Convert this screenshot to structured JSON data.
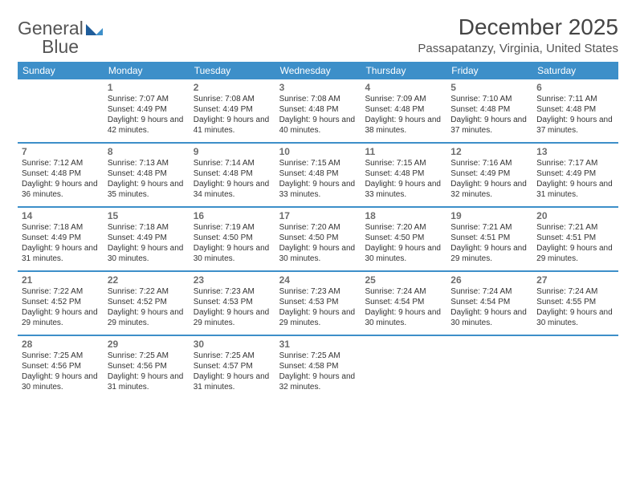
{
  "brand": {
    "part1": "General",
    "part2": "Blue"
  },
  "title": "December 2025",
  "location": "Passapatanzy, Virginia, United States",
  "colors": {
    "header_bg": "#3d8fc9",
    "border": "#3d8fc9",
    "text": "#333333"
  },
  "day_headers": [
    "Sunday",
    "Monday",
    "Tuesday",
    "Wednesday",
    "Thursday",
    "Friday",
    "Saturday"
  ],
  "weeks": [
    [
      {
        "day": "",
        "sunrise": "",
        "sunset": "",
        "daylight": ""
      },
      {
        "day": "1",
        "sunrise": "Sunrise: 7:07 AM",
        "sunset": "Sunset: 4:49 PM",
        "daylight": "Daylight: 9 hours and 42 minutes."
      },
      {
        "day": "2",
        "sunrise": "Sunrise: 7:08 AM",
        "sunset": "Sunset: 4:49 PM",
        "daylight": "Daylight: 9 hours and 41 minutes."
      },
      {
        "day": "3",
        "sunrise": "Sunrise: 7:08 AM",
        "sunset": "Sunset: 4:48 PM",
        "daylight": "Daylight: 9 hours and 40 minutes."
      },
      {
        "day": "4",
        "sunrise": "Sunrise: 7:09 AM",
        "sunset": "Sunset: 4:48 PM",
        "daylight": "Daylight: 9 hours and 38 minutes."
      },
      {
        "day": "5",
        "sunrise": "Sunrise: 7:10 AM",
        "sunset": "Sunset: 4:48 PM",
        "daylight": "Daylight: 9 hours and 37 minutes."
      },
      {
        "day": "6",
        "sunrise": "Sunrise: 7:11 AM",
        "sunset": "Sunset: 4:48 PM",
        "daylight": "Daylight: 9 hours and 37 minutes."
      }
    ],
    [
      {
        "day": "7",
        "sunrise": "Sunrise: 7:12 AM",
        "sunset": "Sunset: 4:48 PM",
        "daylight": "Daylight: 9 hours and 36 minutes."
      },
      {
        "day": "8",
        "sunrise": "Sunrise: 7:13 AM",
        "sunset": "Sunset: 4:48 PM",
        "daylight": "Daylight: 9 hours and 35 minutes."
      },
      {
        "day": "9",
        "sunrise": "Sunrise: 7:14 AM",
        "sunset": "Sunset: 4:48 PM",
        "daylight": "Daylight: 9 hours and 34 minutes."
      },
      {
        "day": "10",
        "sunrise": "Sunrise: 7:15 AM",
        "sunset": "Sunset: 4:48 PM",
        "daylight": "Daylight: 9 hours and 33 minutes."
      },
      {
        "day": "11",
        "sunrise": "Sunrise: 7:15 AM",
        "sunset": "Sunset: 4:48 PM",
        "daylight": "Daylight: 9 hours and 33 minutes."
      },
      {
        "day": "12",
        "sunrise": "Sunrise: 7:16 AM",
        "sunset": "Sunset: 4:49 PM",
        "daylight": "Daylight: 9 hours and 32 minutes."
      },
      {
        "day": "13",
        "sunrise": "Sunrise: 7:17 AM",
        "sunset": "Sunset: 4:49 PM",
        "daylight": "Daylight: 9 hours and 31 minutes."
      }
    ],
    [
      {
        "day": "14",
        "sunrise": "Sunrise: 7:18 AM",
        "sunset": "Sunset: 4:49 PM",
        "daylight": "Daylight: 9 hours and 31 minutes."
      },
      {
        "day": "15",
        "sunrise": "Sunrise: 7:18 AM",
        "sunset": "Sunset: 4:49 PM",
        "daylight": "Daylight: 9 hours and 30 minutes."
      },
      {
        "day": "16",
        "sunrise": "Sunrise: 7:19 AM",
        "sunset": "Sunset: 4:50 PM",
        "daylight": "Daylight: 9 hours and 30 minutes."
      },
      {
        "day": "17",
        "sunrise": "Sunrise: 7:20 AM",
        "sunset": "Sunset: 4:50 PM",
        "daylight": "Daylight: 9 hours and 30 minutes."
      },
      {
        "day": "18",
        "sunrise": "Sunrise: 7:20 AM",
        "sunset": "Sunset: 4:50 PM",
        "daylight": "Daylight: 9 hours and 30 minutes."
      },
      {
        "day": "19",
        "sunrise": "Sunrise: 7:21 AM",
        "sunset": "Sunset: 4:51 PM",
        "daylight": "Daylight: 9 hours and 29 minutes."
      },
      {
        "day": "20",
        "sunrise": "Sunrise: 7:21 AM",
        "sunset": "Sunset: 4:51 PM",
        "daylight": "Daylight: 9 hours and 29 minutes."
      }
    ],
    [
      {
        "day": "21",
        "sunrise": "Sunrise: 7:22 AM",
        "sunset": "Sunset: 4:52 PM",
        "daylight": "Daylight: 9 hours and 29 minutes."
      },
      {
        "day": "22",
        "sunrise": "Sunrise: 7:22 AM",
        "sunset": "Sunset: 4:52 PM",
        "daylight": "Daylight: 9 hours and 29 minutes."
      },
      {
        "day": "23",
        "sunrise": "Sunrise: 7:23 AM",
        "sunset": "Sunset: 4:53 PM",
        "daylight": "Daylight: 9 hours and 29 minutes."
      },
      {
        "day": "24",
        "sunrise": "Sunrise: 7:23 AM",
        "sunset": "Sunset: 4:53 PM",
        "daylight": "Daylight: 9 hours and 29 minutes."
      },
      {
        "day": "25",
        "sunrise": "Sunrise: 7:24 AM",
        "sunset": "Sunset: 4:54 PM",
        "daylight": "Daylight: 9 hours and 30 minutes."
      },
      {
        "day": "26",
        "sunrise": "Sunrise: 7:24 AM",
        "sunset": "Sunset: 4:54 PM",
        "daylight": "Daylight: 9 hours and 30 minutes."
      },
      {
        "day": "27",
        "sunrise": "Sunrise: 7:24 AM",
        "sunset": "Sunset: 4:55 PM",
        "daylight": "Daylight: 9 hours and 30 minutes."
      }
    ],
    [
      {
        "day": "28",
        "sunrise": "Sunrise: 7:25 AM",
        "sunset": "Sunset: 4:56 PM",
        "daylight": "Daylight: 9 hours and 30 minutes."
      },
      {
        "day": "29",
        "sunrise": "Sunrise: 7:25 AM",
        "sunset": "Sunset: 4:56 PM",
        "daylight": "Daylight: 9 hours and 31 minutes."
      },
      {
        "day": "30",
        "sunrise": "Sunrise: 7:25 AM",
        "sunset": "Sunset: 4:57 PM",
        "daylight": "Daylight: 9 hours and 31 minutes."
      },
      {
        "day": "31",
        "sunrise": "Sunrise: 7:25 AM",
        "sunset": "Sunset: 4:58 PM",
        "daylight": "Daylight: 9 hours and 32 minutes."
      },
      {
        "day": "",
        "sunrise": "",
        "sunset": "",
        "daylight": ""
      },
      {
        "day": "",
        "sunrise": "",
        "sunset": "",
        "daylight": ""
      },
      {
        "day": "",
        "sunrise": "",
        "sunset": "",
        "daylight": ""
      }
    ]
  ]
}
